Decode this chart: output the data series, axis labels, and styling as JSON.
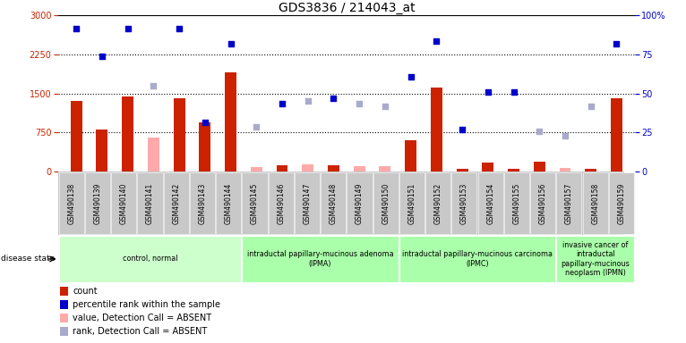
{
  "title": "GDS3836 / 214043_at",
  "samples": [
    "GSM490138",
    "GSM490139",
    "GSM490140",
    "GSM490141",
    "GSM490142",
    "GSM490143",
    "GSM490144",
    "GSM490145",
    "GSM490146",
    "GSM490147",
    "GSM490148",
    "GSM490149",
    "GSM490150",
    "GSM490151",
    "GSM490152",
    "GSM490153",
    "GSM490154",
    "GSM490155",
    "GSM490156",
    "GSM490157",
    "GSM490158",
    "GSM490159"
  ],
  "count_present": [
    1350,
    800,
    1450,
    null,
    1400,
    950,
    1900,
    null,
    120,
    null,
    120,
    null,
    null,
    600,
    1620,
    50,
    180,
    50,
    190,
    null,
    50,
    1400
  ],
  "count_absent": [
    null,
    null,
    null,
    650,
    null,
    null,
    null,
    80,
    null,
    140,
    null,
    100,
    100,
    null,
    null,
    null,
    null,
    null,
    null,
    70,
    null,
    null
  ],
  "rank_present": [
    2750,
    2220,
    2750,
    null,
    2750,
    950,
    2450,
    null,
    1300,
    null,
    1400,
    null,
    null,
    1820,
    2500,
    800,
    1530,
    1530,
    null,
    null,
    null,
    2450
  ],
  "rank_absent": [
    null,
    null,
    null,
    1650,
    null,
    null,
    null,
    850,
    null,
    1350,
    null,
    1300,
    1250,
    null,
    null,
    null,
    null,
    null,
    770,
    680,
    1250,
    null
  ],
  "yticks_left": [
    0,
    750,
    1500,
    2250,
    3000
  ],
  "yticks_right": [
    0,
    25,
    50,
    75,
    100
  ],
  "dotted_lines": [
    750,
    1500,
    2250
  ],
  "groups": [
    {
      "label": "control, normal",
      "start": 0,
      "end": 7,
      "color": "#ccffcc"
    },
    {
      "label": "intraductal papillary-mucinous adenoma\n(IPMA)",
      "start": 7,
      "end": 13,
      "color": "#aaffaa"
    },
    {
      "label": "intraductal papillary-mucinous carcinoma\n(IPMC)",
      "start": 13,
      "end": 19,
      "color": "#aaffaa"
    },
    {
      "label": "invasive cancer of\nintraductal\npapillary-mucinous\nneoplasm (IPMN)",
      "start": 19,
      "end": 22,
      "color": "#aaffaa"
    }
  ],
  "count_color": "#cc2200",
  "count_absent_color": "#ffaaaa",
  "rank_color": "#0000cc",
  "rank_absent_color": "#aaaacc",
  "bg_sample": "#c8c8c8",
  "legend_labels": [
    "count",
    "percentile rank within the sample",
    "value, Detection Call = ABSENT",
    "rank, Detection Call = ABSENT"
  ],
  "legend_colors": [
    "#cc2200",
    "#0000cc",
    "#ffaaaa",
    "#aaaacc"
  ]
}
